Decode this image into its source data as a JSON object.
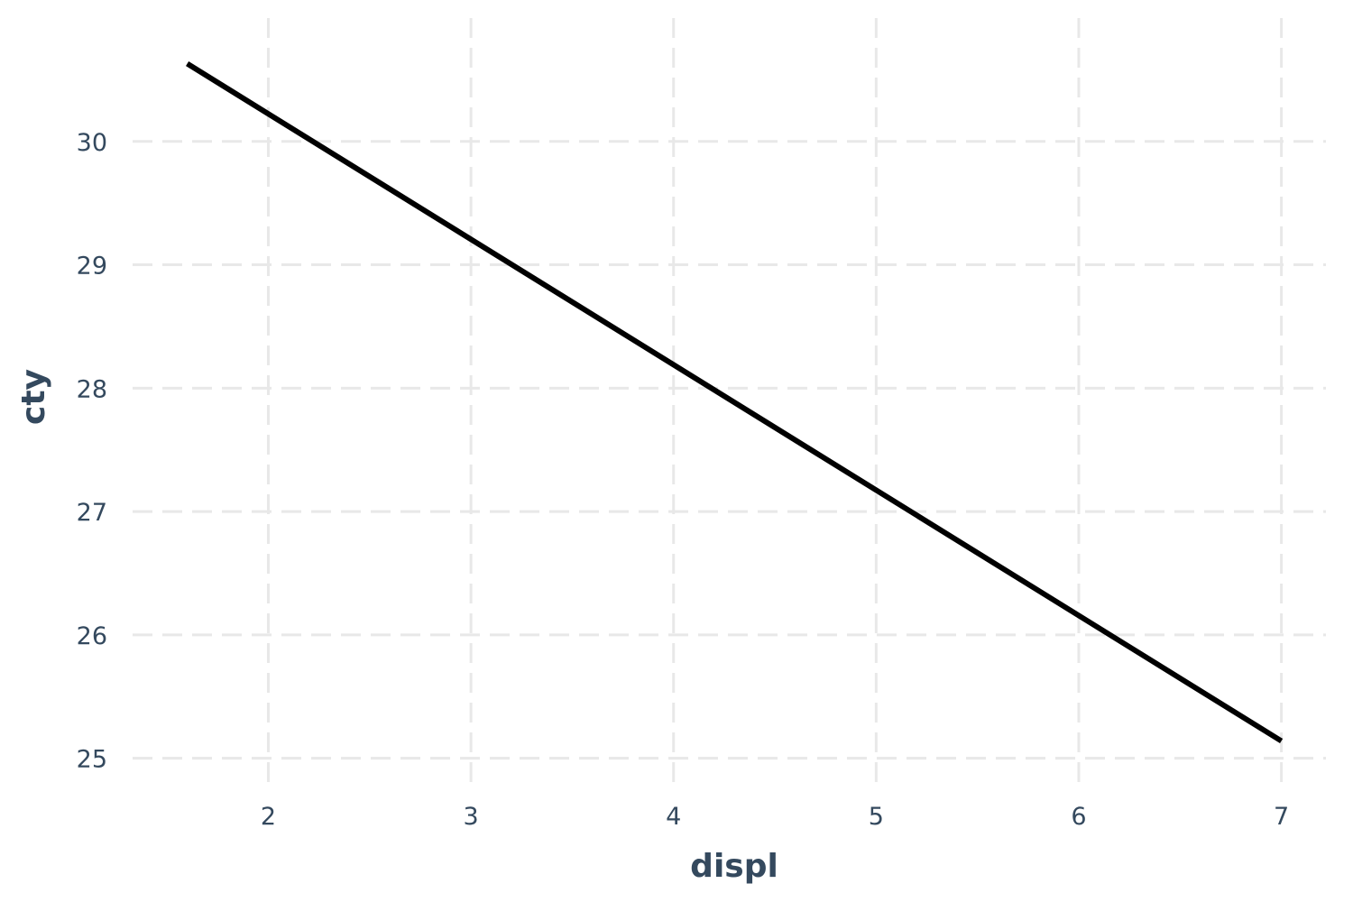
{
  "chart_data": {
    "type": "line",
    "title": "",
    "xlabel": "displ",
    "ylabel": "cty",
    "xlim": [
      1.33,
      7.22
    ],
    "ylim": [
      24.8,
      31.0
    ],
    "x_ticks": [
      2,
      3,
      4,
      5,
      6,
      7
    ],
    "y_ticks": [
      25,
      26,
      27,
      28,
      29,
      30
    ],
    "grid": true,
    "legend": "none",
    "series": [
      {
        "x": [
          1.6,
          7.0
        ],
        "y": [
          30.63,
          25.14
        ],
        "color": "#000000"
      }
    ]
  }
}
